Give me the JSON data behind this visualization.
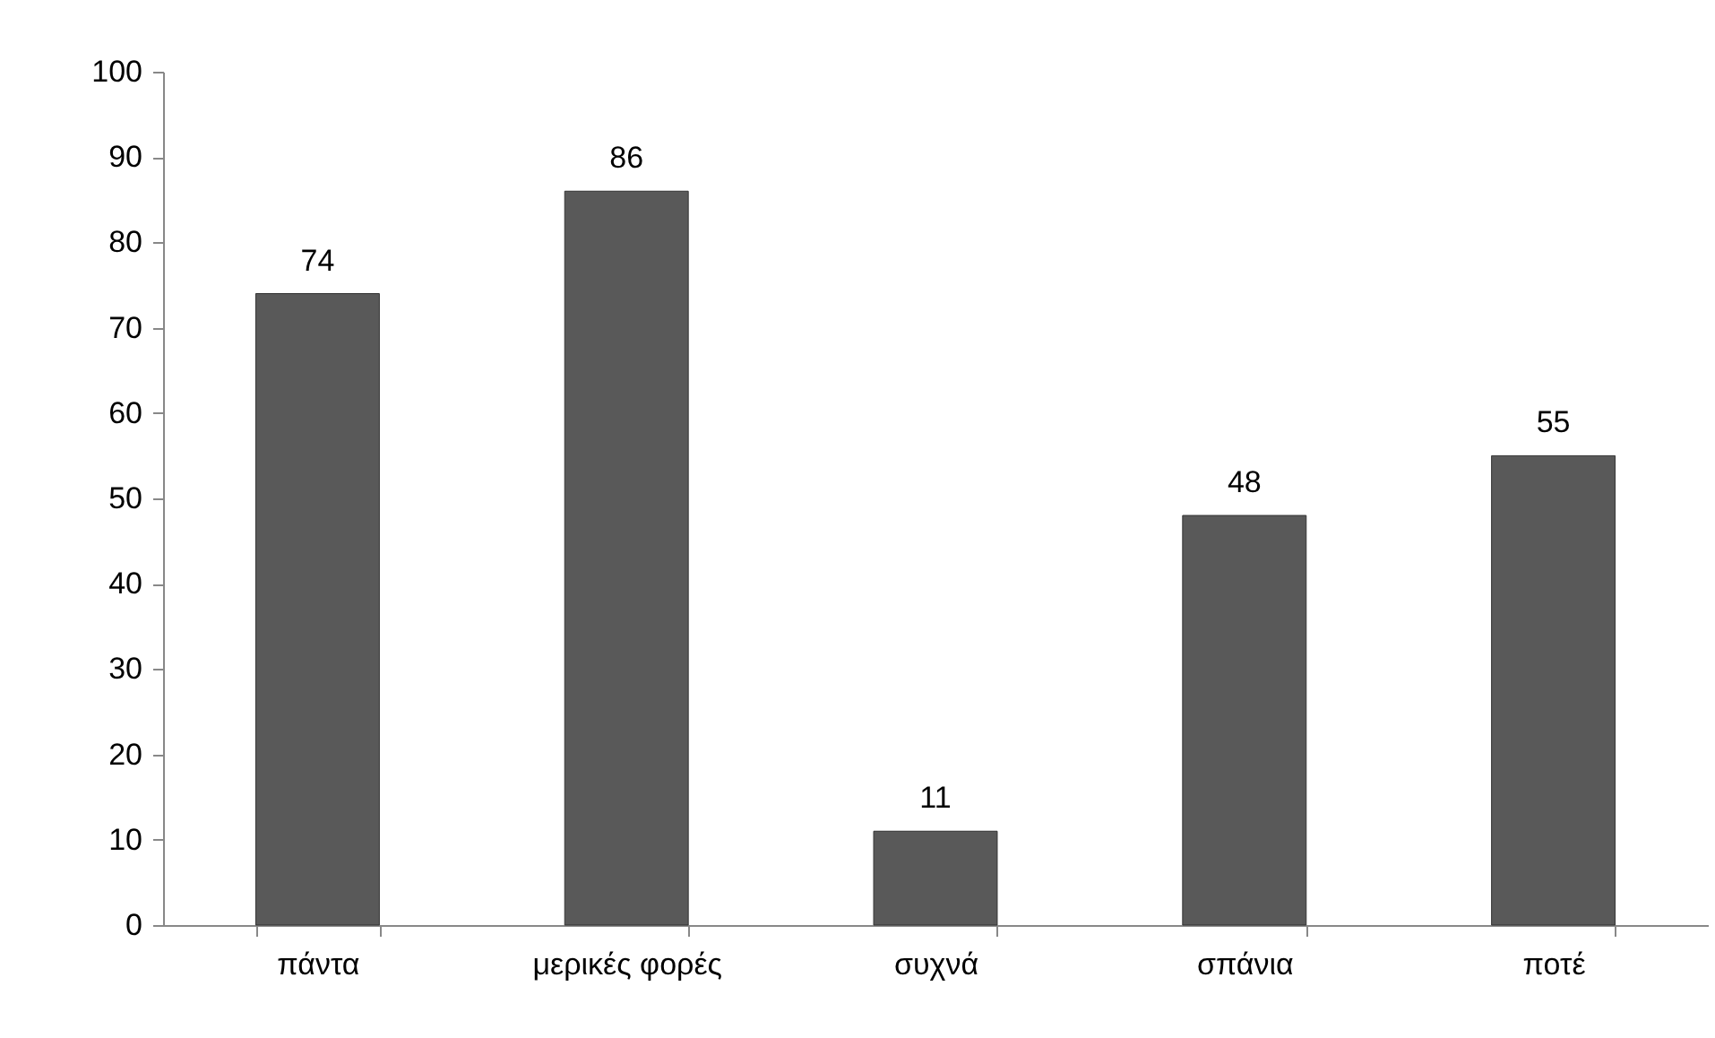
{
  "chart_data": {
    "type": "bar",
    "categories": [
      "πάντα",
      "μερικές φορές",
      "συχνά",
      "σπάνια",
      "ποτέ"
    ],
    "values": [
      74,
      86,
      11,
      48,
      55
    ],
    "color": "#595959",
    "ylim": [
      0,
      100
    ],
    "yticks": [
      0,
      10,
      20,
      30,
      40,
      50,
      60,
      70,
      80,
      90,
      100
    ],
    "grid": false,
    "data_labels": true
  }
}
